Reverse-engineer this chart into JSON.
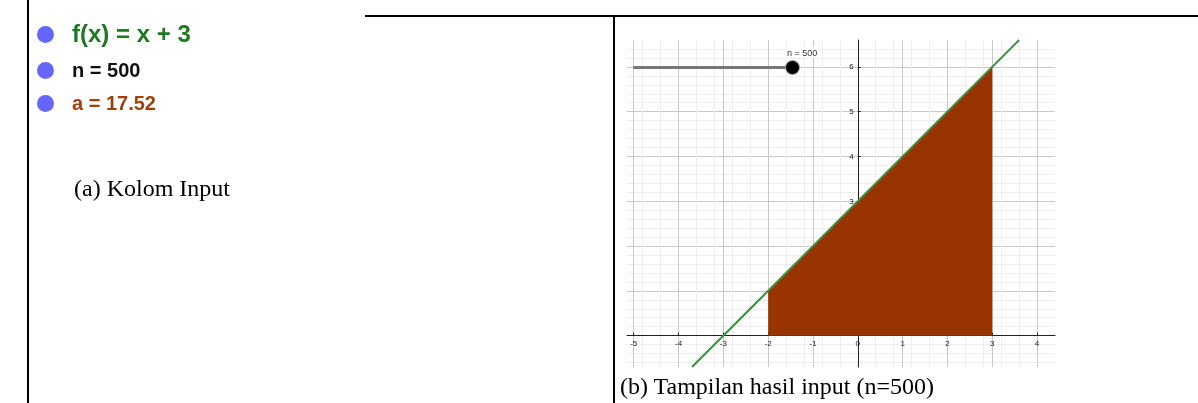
{
  "chart_data": [
    {
      "type": "other",
      "title": "(a) Kolom Input",
      "annotations": [
        "f(x) = x + 3",
        "n = 500",
        "a = 17.52"
      ]
    },
    {
      "type": "line",
      "title": "(b) Tampilan hasil input (n=500)",
      "annotations": [
        "n = 500"
      ],
      "xlim": [
        -5.15,
        4.4
      ],
      "ylim": [
        -0.7,
        6.6
      ],
      "xticks": [
        -5,
        -4,
        -3,
        -2,
        -1,
        0,
        1,
        2,
        3,
        4
      ],
      "yticks": [
        {
          "value": 1,
          "label": null
        },
        {
          "value": 2,
          "label": null
        },
        3,
        4,
        5,
        6
      ],
      "grid": true,
      "series": [
        {
          "type": "area",
          "color": "#993300",
          "x": [
            -2,
            3
          ],
          "values": [
            1,
            6
          ]
        },
        {
          "type": "line",
          "color": "#3d8f3d",
          "x": [
            -3.7,
            3.6
          ],
          "values": [
            -0.7,
            6.6
          ]
        }
      ]
    }
  ]
}
